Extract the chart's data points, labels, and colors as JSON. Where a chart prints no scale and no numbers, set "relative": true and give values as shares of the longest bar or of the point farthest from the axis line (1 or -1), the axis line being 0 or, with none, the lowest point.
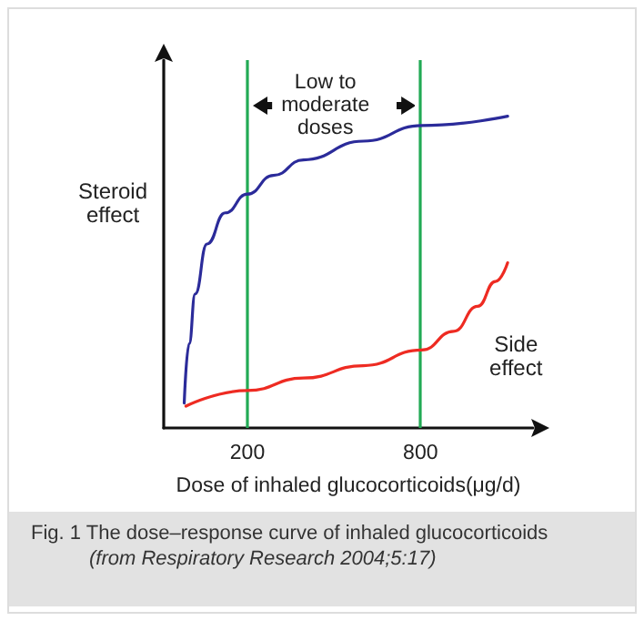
{
  "chart_data": {
    "type": "line",
    "title": "Fig. 1 The dose–response curve of inhaled glucocorticoids",
    "xlabel": "Dose of inhaled glucocorticoids(μg/d)",
    "relative": true,
    "xlim": [
      -90,
      1190
    ],
    "xticks": [
      200,
      800
    ],
    "series": [
      {
        "name": "Steroid effect",
        "color": "#2b2b9a",
        "x": [
          -19,
          -2,
          19,
          60,
          123,
          200,
          290,
          394,
          602,
          804,
          1102
        ],
        "values": [
          0.08,
          0.27,
          0.43,
          0.59,
          0.69,
          0.75,
          0.81,
          0.86,
          0.92,
          0.97,
          1
        ]
      },
      {
        "name": "Side effect",
        "color": "#ee2b22",
        "x": [
          -13,
          200,
          394,
          602,
          804,
          915,
          998,
          1060,
          1102
        ],
        "values": [
          0.07,
          0.12,
          0.16,
          0.2,
          0.25,
          0.31,
          0.39,
          0.47,
          0.53
        ]
      }
    ],
    "ref_lines": [
      {
        "axis": "x",
        "value": 200,
        "color": "#22aa55"
      },
      {
        "axis": "x",
        "value": 800,
        "color": "#22aa55"
      }
    ],
    "annotations": [
      "Low to moderate doses",
      "(from Respiratory Research 2004;5:17)"
    ],
    "grid": false,
    "legend": false,
    "marker": "none",
    "line_style": "solid"
  }
}
